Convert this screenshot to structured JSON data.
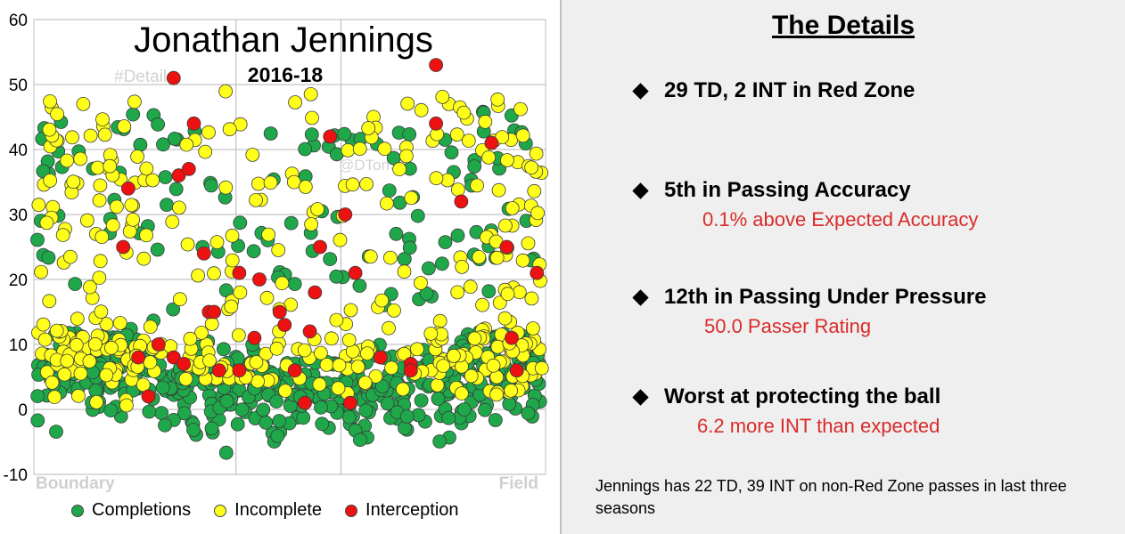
{
  "chart_data": {
    "type": "scatter",
    "title": "Jonathan Jennings",
    "subtitle": "2016-18",
    "watermarks": [
      "#Details",
      "@DTonSt"
    ],
    "x_labels": {
      "left": "Boundary",
      "right": "Field"
    },
    "ylim": [
      -10,
      60
    ],
    "yticks": [
      -10,
      0,
      10,
      20,
      30,
      40,
      50,
      60
    ],
    "grid": true,
    "legend_position": "bottom",
    "series": [
      {
        "name": "Completions",
        "color": "#1fa84a"
      },
      {
        "name": "Incomplete",
        "color": "#ffff1a"
      },
      {
        "name": "Interception",
        "color": "#ee1111"
      }
    ],
    "interceptions": [
      {
        "x": 0.27,
        "y": 51
      },
      {
        "x": 0.79,
        "y": 53
      },
      {
        "x": 0.31,
        "y": 44
      },
      {
        "x": 0.79,
        "y": 44
      },
      {
        "x": 0.58,
        "y": 42
      },
      {
        "x": 0.9,
        "y": 41
      },
      {
        "x": 0.28,
        "y": 36
      },
      {
        "x": 0.3,
        "y": 37
      },
      {
        "x": 0.18,
        "y": 34
      },
      {
        "x": 0.84,
        "y": 32
      },
      {
        "x": 0.61,
        "y": 30
      },
      {
        "x": 0.17,
        "y": 25
      },
      {
        "x": 0.93,
        "y": 25
      },
      {
        "x": 0.56,
        "y": 25
      },
      {
        "x": 0.33,
        "y": 24
      },
      {
        "x": 0.4,
        "y": 21
      },
      {
        "x": 0.44,
        "y": 20
      },
      {
        "x": 0.63,
        "y": 21
      },
      {
        "x": 0.99,
        "y": 21
      },
      {
        "x": 0.55,
        "y": 18
      },
      {
        "x": 0.34,
        "y": 15
      },
      {
        "x": 0.35,
        "y": 15
      },
      {
        "x": 0.48,
        "y": 15
      },
      {
        "x": 0.49,
        "y": 13
      },
      {
        "x": 0.54,
        "y": 12
      },
      {
        "x": 0.43,
        "y": 11
      },
      {
        "x": 0.94,
        "y": 11
      },
      {
        "x": 0.24,
        "y": 10
      },
      {
        "x": 0.68,
        "y": 8
      },
      {
        "x": 0.2,
        "y": 8
      },
      {
        "x": 0.27,
        "y": 8
      },
      {
        "x": 0.74,
        "y": 7
      },
      {
        "x": 0.29,
        "y": 7
      },
      {
        "x": 0.36,
        "y": 6
      },
      {
        "x": 0.4,
        "y": 6
      },
      {
        "x": 0.51,
        "y": 6
      },
      {
        "x": 0.74,
        "y": 6
      },
      {
        "x": 0.95,
        "y": 6
      },
      {
        "x": 0.22,
        "y": 2
      },
      {
        "x": 0.53,
        "y": 1
      },
      {
        "x": 0.62,
        "y": 1
      }
    ]
  },
  "details": {
    "title": "The Details",
    "items": [
      {
        "head": "29 TD, 2 INT in Red Zone",
        "sub": ""
      },
      {
        "head": "5th in Passing Accuracy",
        "sub": "0.1% above Expected Accuracy"
      },
      {
        "head": "12th in Passing Under Pressure",
        "sub": "50.0 Passer Rating"
      },
      {
        "head": "Worst at protecting the ball",
        "sub": "6.2 more INT than expected"
      }
    ],
    "footnote": "Jennings has 22 TD, 39 INT on non-Red Zone passes in last three seasons"
  }
}
